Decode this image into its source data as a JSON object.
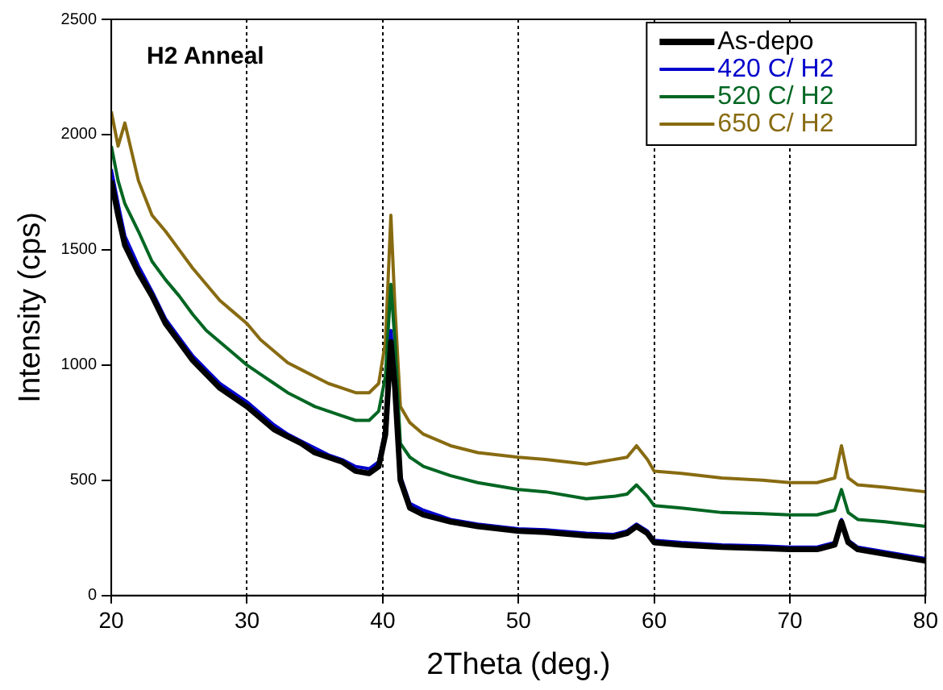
{
  "chart_data": {
    "type": "line",
    "title": "H2 Anneal",
    "xlabel": "2Theta (deg.)",
    "ylabel": "Intensity (cps)",
    "xlim": [
      20,
      80
    ],
    "xticks": [
      20,
      30,
      40,
      50,
      60,
      70,
      80
    ],
    "ylim": [
      0,
      2500
    ],
    "yticks": [
      0,
      500,
      1000,
      1500,
      2000,
      2500
    ],
    "grid": "x",
    "legend": "top right",
    "marker": "none",
    "line_style": "solid",
    "series": [
      {
        "name": "As-depo",
        "color": "#000000",
        "x": [
          20,
          20.5,
          21,
          22,
          23,
          24,
          25,
          26,
          27,
          28,
          29,
          30,
          31,
          32,
          33,
          34,
          35,
          36,
          37,
          38,
          39,
          39.7,
          40.2,
          40.6,
          40.9,
          41.3,
          42,
          43,
          45,
          47,
          50,
          52,
          55,
          57,
          58,
          58.7,
          59.5,
          60,
          62,
          65,
          68,
          70,
          72,
          73.3,
          73.8,
          74.3,
          75,
          77,
          80
        ],
        "values": [
          1800,
          1650,
          1520,
          1400,
          1300,
          1180,
          1100,
          1020,
          960,
          900,
          860,
          820,
          770,
          720,
          690,
          660,
          620,
          600,
          580,
          540,
          530,
          560,
          700,
          1100,
          900,
          500,
          380,
          350,
          320,
          300,
          280,
          275,
          260,
          255,
          270,
          300,
          270,
          230,
          220,
          210,
          205,
          200,
          200,
          220,
          320,
          230,
          200,
          180,
          150
        ]
      },
      {
        "name": "420 C/ H2",
        "color": "#0000cc",
        "x": [
          20,
          20.5,
          21,
          22,
          23,
          24,
          25,
          26,
          27,
          28,
          29,
          30,
          31,
          32,
          33,
          34,
          35,
          36,
          37,
          38,
          39,
          39.7,
          40.2,
          40.6,
          40.9,
          41.3,
          42,
          43,
          45,
          47,
          50,
          52,
          55,
          57,
          58,
          58.7,
          59.5,
          60,
          62,
          65,
          68,
          70,
          72,
          73.3,
          73.8,
          74.3,
          75,
          77,
          80
        ],
        "values": [
          1850,
          1700,
          1560,
          1430,
          1320,
          1200,
          1120,
          1040,
          980,
          920,
          880,
          840,
          790,
          740,
          700,
          670,
          640,
          610,
          590,
          560,
          550,
          580,
          720,
          1150,
          950,
          520,
          400,
          370,
          330,
          310,
          290,
          285,
          270,
          265,
          280,
          310,
          280,
          240,
          230,
          220,
          215,
          210,
          210,
          230,
          330,
          240,
          210,
          190,
          160
        ]
      },
      {
        "name": "520 C/ H2",
        "color": "#006622",
        "x": [
          20,
          20.5,
          21,
          22,
          23,
          24,
          25,
          26,
          27,
          28,
          29,
          30,
          31,
          32,
          33,
          34,
          35,
          36,
          37,
          38,
          39,
          39.7,
          40.2,
          40.6,
          40.9,
          41.3,
          42,
          43,
          45,
          47,
          50,
          52,
          55,
          57,
          58,
          58.7,
          59.5,
          60,
          62,
          65,
          68,
          70,
          72,
          73.3,
          73.8,
          74.3,
          75,
          77,
          80
        ],
        "values": [
          1950,
          1800,
          1700,
          1580,
          1450,
          1370,
          1300,
          1220,
          1150,
          1100,
          1050,
          1000,
          960,
          920,
          880,
          850,
          820,
          800,
          780,
          760,
          760,
          800,
          950,
          1350,
          1100,
          660,
          600,
          560,
          520,
          490,
          460,
          450,
          420,
          430,
          440,
          480,
          430,
          390,
          380,
          360,
          355,
          350,
          350,
          370,
          460,
          360,
          330,
          320,
          300
        ]
      },
      {
        "name": "650 C/ H2",
        "color": "#886b11",
        "x": [
          20,
          20.5,
          21,
          22,
          23,
          24,
          25,
          26,
          27,
          28,
          29,
          30,
          31,
          32,
          33,
          34,
          35,
          36,
          37,
          38,
          39,
          39.7,
          40.2,
          40.6,
          40.9,
          41.3,
          42,
          43,
          45,
          47,
          50,
          52,
          55,
          57,
          58,
          58.7,
          59.5,
          60,
          62,
          65,
          68,
          70,
          72,
          73.3,
          73.8,
          74.3,
          75,
          77,
          80
        ],
        "values": [
          2100,
          1950,
          2050,
          1800,
          1650,
          1580,
          1500,
          1420,
          1350,
          1280,
          1230,
          1180,
          1110,
          1060,
          1010,
          980,
          950,
          920,
          900,
          880,
          880,
          920,
          1100,
          1650,
          1250,
          820,
          750,
          700,
          650,
          620,
          600,
          590,
          570,
          590,
          600,
          650,
          590,
          540,
          530,
          510,
          500,
          490,
          490,
          510,
          650,
          510,
          480,
          470,
          450
        ]
      }
    ]
  }
}
